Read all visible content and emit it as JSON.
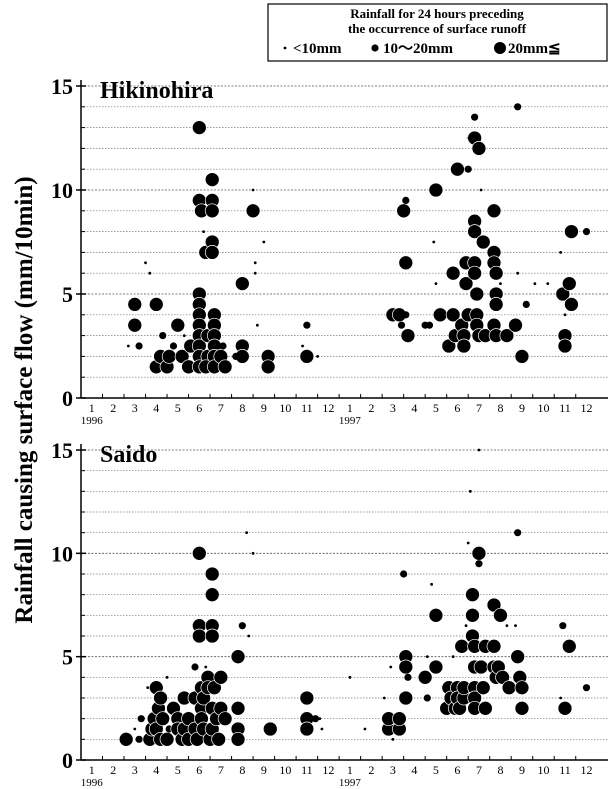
{
  "ylabel": "Rainfall causing surface flow (mm/10min)",
  "legend": {
    "title_lines": [
      "Rainfall for 24 hours preceding",
      "the occurrence of surface runoff"
    ],
    "classes": [
      "<10mm",
      "10～20mm",
      "20mm≦"
    ]
  },
  "chart_data": [
    {
      "type": "scatter",
      "title": "Hikinohira",
      "xlim": [
        0.5,
        25
      ],
      "ylim": [
        0,
        15
      ],
      "yticks": [
        0,
        5,
        10,
        15
      ],
      "minor_yticks": [
        1,
        2,
        3,
        4,
        6,
        7,
        8,
        9,
        11,
        12,
        13,
        14
      ],
      "xticks": [
        1,
        2,
        3,
        4,
        5,
        6,
        7,
        8,
        9,
        10,
        11,
        12,
        {
          "value": 13,
          "label": "1"
        },
        {
          "value": 14,
          "label": "2"
        },
        {
          "value": 15,
          "label": "3"
        },
        {
          "value": 16,
          "label": "4"
        },
        {
          "value": 17,
          "label": "5"
        },
        {
          "value": 18,
          "label": "6"
        },
        {
          "value": 19,
          "label": "7"
        },
        {
          "value": 20,
          "label": "8"
        },
        {
          "value": 21,
          "label": "9"
        },
        {
          "value": 22,
          "label": "10"
        },
        {
          "value": 23,
          "label": "11"
        },
        {
          "value": 24,
          "label": "12"
        }
      ],
      "year_labels": [
        {
          "value": 1,
          "label": "1996"
        },
        {
          "value": 13,
          "label": "1997"
        }
      ],
      "x": [
        3.0,
        3.0,
        3.2,
        2.7,
        3.5,
        3.7,
        4.0,
        4.2,
        4.3,
        4.0,
        4.5,
        4.6,
        4.8,
        5.0,
        5.2,
        5.5,
        5.6,
        5.3,
        6.0,
        6.0,
        6.1,
        6.0,
        6.0,
        6.0,
        6.0,
        6.0,
        6.0,
        6.0,
        6.0,
        6.3,
        6.4,
        6.4,
        6.3,
        6.2,
        6.6,
        6.6,
        6.6,
        6.6,
        6.6,
        6.7,
        6.7,
        6.7,
        6.7,
        6.7,
        6.7,
        7.0,
        7.2,
        7.1,
        8.0,
        8.0,
        8.0,
        7.7,
        8.5,
        8.5,
        8.6,
        8.6,
        8.7,
        9.0,
        9.2,
        9.2,
        11.0,
        11.0,
        10.8,
        11.5,
        15,
        15.3,
        15.4,
        15.5,
        15.6,
        15.6,
        15.6,
        15.7,
        16.5,
        16.7,
        16.9,
        17.0,
        17.0,
        17.2,
        17.6,
        17.8,
        17.8,
        17.9,
        18.0,
        18.2,
        18.3,
        18.3,
        18.4,
        18.4,
        18.5,
        18.5,
        18.5,
        18.8,
        18.8,
        18.8,
        18.8,
        18.8,
        18.8,
        18.9,
        18.9,
        18.9,
        19.0,
        19.0,
        19.1,
        19.2,
        19.3,
        19.7,
        19.7,
        19.7,
        19.8,
        19.8,
        19.8,
        19.7,
        19.8,
        20.0,
        20.3,
        20.8,
        20.8,
        20.7,
        21.0,
        21.2,
        21.6,
        22.2,
        22.8,
        22.9,
        23.0,
        23.0,
        23.0,
        23.2,
        23.3,
        23.3,
        24.0
      ],
      "y": [
        4.5,
        3.5,
        2.5,
        2.5,
        6.5,
        6,
        1.5,
        2,
        3,
        4.5,
        1.5,
        2,
        2.5,
        3.5,
        2,
        1.5,
        2.5,
        3,
        13,
        9.5,
        9,
        5,
        4.5,
        4,
        3.5,
        3,
        2.5,
        2,
        1.5,
        7,
        3,
        2,
        1.5,
        8,
        10.5,
        9.5,
        9,
        7.5,
        7,
        4,
        3.5,
        3,
        2.5,
        2,
        1.5,
        2,
        1.5,
        2.5,
        5.5,
        2.5,
        2,
        2,
        10,
        9,
        6.5,
        6,
        3.5,
        7.5,
        2,
        1.5,
        3.5,
        2,
        2.5,
        2,
        4,
        4,
        3.5,
        9,
        9.5,
        6.5,
        4,
        3,
        3.5,
        3.5,
        7.5,
        10,
        5.5,
        4,
        2.5,
        6,
        4,
        3,
        11,
        3.5,
        3,
        2.5,
        6.5,
        5.5,
        4,
        11,
        12.5,
        13.5,
        12.5,
        8.5,
        8,
        6.5,
        6,
        5,
        4,
        3.5,
        3,
        12,
        10,
        7.5,
        3,
        9,
        7,
        6.5,
        6,
        5,
        4.5,
        3.5,
        3,
        5.5,
        3,
        14,
        6,
        3.5,
        2,
        4.5,
        5.5,
        5.5,
        7,
        5,
        3,
        2.5,
        4,
        5.5,
        4.5,
        8,
        8
      ],
      "size_class": [
        2,
        2,
        1,
        0,
        0,
        0,
        2,
        2,
        1,
        2,
        2,
        2,
        1,
        2,
        2,
        2,
        2,
        0,
        2,
        2,
        2,
        2,
        2,
        2,
        2,
        2,
        2,
        2,
        2,
        2,
        2,
        2,
        2,
        0,
        2,
        2,
        2,
        2,
        2,
        2,
        2,
        2,
        2,
        2,
        2,
        2,
        2,
        1,
        2,
        2,
        2,
        1,
        0,
        2,
        0,
        0,
        0,
        0,
        2,
        2,
        1,
        2,
        0,
        0,
        2,
        2,
        1,
        2,
        1,
        2,
        1,
        2,
        1,
        1,
        0,
        2,
        0,
        2,
        2,
        2,
        2,
        2,
        2,
        2,
        2,
        2,
        2,
        2,
        2,
        1,
        0,
        1,
        2,
        2,
        2,
        2,
        2,
        2,
        2,
        2,
        2,
        2,
        0,
        2,
        2,
        2,
        2,
        2,
        2,
        2,
        2,
        2,
        2,
        0,
        2,
        1,
        0,
        2,
        2,
        1,
        0,
        0,
        0,
        2,
        2,
        2,
        0,
        2,
        2,
        2,
        1
      ]
    },
    {
      "type": "scatter",
      "title": "Saido",
      "xlim": [
        0.5,
        25
      ],
      "ylim": [
        0,
        15
      ],
      "yticks": [
        0,
        5,
        10,
        15
      ],
      "minor_yticks": [
        1,
        2,
        3,
        4,
        6,
        7,
        8,
        9,
        11,
        12,
        13,
        14
      ],
      "xticks": [
        1,
        2,
        3,
        4,
        5,
        6,
        7,
        8,
        9,
        10,
        11,
        12,
        {
          "value": 13,
          "label": "1"
        },
        {
          "value": 14,
          "label": "2"
        },
        {
          "value": 15,
          "label": "3"
        },
        {
          "value": 16,
          "label": "4"
        },
        {
          "value": 17,
          "label": "5"
        },
        {
          "value": 18,
          "label": "6"
        },
        {
          "value": 19,
          "label": "7"
        },
        {
          "value": 20,
          "label": "8"
        },
        {
          "value": 21,
          "label": "9"
        },
        {
          "value": 22,
          "label": "10"
        },
        {
          "value": 23,
          "label": "11"
        },
        {
          "value": 24,
          "label": "12"
        }
      ],
      "year_labels": [
        {
          "value": 1,
          "label": "1996"
        },
        {
          "value": 13,
          "label": "1997"
        }
      ],
      "x": [
        2.6,
        3.0,
        3.2,
        3.3,
        3.6,
        3.7,
        3.8,
        3.9,
        4.0,
        4.0,
        4.1,
        4.2,
        4.2,
        4.3,
        4.5,
        4.5,
        4.8,
        4.6,
        5.0,
        5.0,
        5.2,
        5.3,
        5.3,
        5.5,
        5.5,
        5.8,
        5.8,
        5.8,
        5.9,
        6.0,
        6.0,
        6.0,
        6.1,
        6.1,
        6.1,
        6.2,
        6.2,
        6.3,
        6.4,
        6.4,
        6.5,
        6.6,
        6.6,
        6.6,
        6.6,
        6.6,
        6.6,
        6.7,
        6.8,
        7.0,
        7.0,
        6.9,
        7.2,
        7.8,
        7.8,
        7.8,
        7.8,
        8.0,
        8.2,
        8.5,
        8.3,
        9.3,
        11.0,
        11.0,
        11.0,
        11.4,
        11.7,
        11.6,
        13.0,
        13.7,
        14.6,
        14.8,
        14.8,
        15.0,
        14.9,
        15.3,
        15.3,
        15.5,
        15.6,
        15.6,
        15.6,
        15.7,
        16.5,
        16.6,
        16.6,
        16.8,
        17.0,
        17.0,
        17.5,
        17.6,
        17.7,
        17.8,
        17.9,
        18.0,
        18.0,
        18.1,
        18.2,
        18.3,
        18.3,
        18.4,
        18.6,
        18.5,
        18.7,
        18.7,
        18.7,
        18.8,
        18.8,
        18.8,
        18.8,
        18.8,
        19.0,
        19.0,
        19.0,
        19.1,
        19.2,
        19.3,
        19.3,
        19.7,
        19.7,
        19.7,
        19.8,
        19.9,
        20.0,
        20.1,
        20.3,
        20.4,
        20.8,
        20.7,
        20.8,
        20.9,
        21.0,
        21.0,
        22.9,
        22.8,
        23.0,
        23.2,
        24.0
      ],
      "y": [
        1,
        1.5,
        1,
        2,
        3.5,
        1,
        1.5,
        2,
        1.5,
        3.5,
        2.5,
        1,
        3,
        2,
        1,
        4,
        2.5,
        1.5,
        2,
        1.5,
        1,
        1.5,
        3,
        2,
        1,
        4.5,
        3,
        1.5,
        1,
        10,
        6.5,
        6,
        3.5,
        2.5,
        2,
        1.5,
        3,
        4.5,
        4,
        3.5,
        1,
        9,
        8,
        6.5,
        6,
        2.5,
        1.5,
        3.5,
        2,
        4,
        2.5,
        1,
        2,
        5,
        2.5,
        1.5,
        1,
        6.5,
        11,
        10,
        6,
        1.5,
        3,
        2,
        1.5,
        2,
        1.5,
        2,
        4,
        1.5,
        3,
        1.5,
        2,
        1,
        4.5,
        1.5,
        2,
        9,
        5,
        4.5,
        3,
        4,
        4,
        3,
        5,
        8.5,
        7,
        4.5,
        2.5,
        3.5,
        3,
        5,
        2.5,
        3.5,
        3,
        2.5,
        5.5,
        3,
        3.5,
        6.5,
        13,
        10.5,
        8,
        7,
        6,
        5.5,
        4.5,
        3.5,
        3,
        2.5,
        15,
        10,
        9.5,
        4.5,
        3.5,
        5.5,
        2.5,
        7.5,
        5.5,
        4.5,
        4,
        4.5,
        7,
        4,
        6.5,
        3.5,
        11,
        6.5,
        5,
        4,
        3.5,
        2.5,
        6.5,
        3,
        2.5,
        5.5,
        3.5
      ],
      "size_class": [
        2,
        0,
        1,
        1,
        0,
        2,
        2,
        2,
        2,
        2,
        2,
        2,
        2,
        2,
        2,
        0,
        2,
        1,
        2,
        2,
        2,
        2,
        2,
        2,
        2,
        1,
        2,
        2,
        2,
        2,
        2,
        2,
        2,
        2,
        2,
        2,
        2,
        0,
        2,
        2,
        2,
        2,
        2,
        2,
        2,
        2,
        2,
        2,
        2,
        2,
        2,
        2,
        2,
        2,
        2,
        2,
        2,
        1,
        0,
        0,
        0,
        2,
        2,
        2,
        2,
        1,
        0,
        0,
        0,
        0,
        0,
        2,
        2,
        0,
        0,
        2,
        2,
        1,
        2,
        2,
        2,
        1,
        2,
        1,
        0,
        0,
        2,
        2,
        2,
        2,
        2,
        0,
        2,
        2,
        2,
        2,
        2,
        2,
        2,
        0,
        0,
        0,
        2,
        2,
        2,
        2,
        2,
        2,
        2,
        2,
        0,
        2,
        1,
        2,
        2,
        2,
        2,
        2,
        2,
        2,
        2,
        2,
        2,
        2,
        0,
        2,
        1,
        0,
        2,
        2,
        2,
        2,
        1,
        0,
        2,
        2,
        1
      ]
    }
  ]
}
